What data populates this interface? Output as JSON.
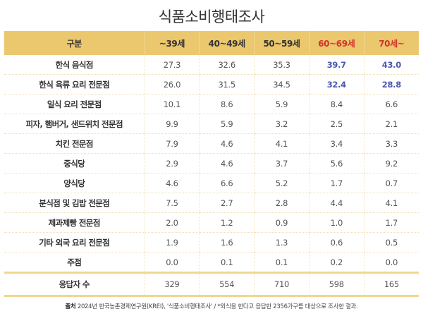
{
  "title": "식품소비행태조사",
  "table": {
    "headers": [
      "구분",
      "~39세",
      "40~49세",
      "50~59세",
      "60~69세",
      "70세~"
    ],
    "highlight_header_color": "#d1342b",
    "highlight_value_color": "#4b57b0",
    "header_bg": "#ebc76e",
    "rows": [
      {
        "label": "한식 음식점",
        "values": [
          "27.3",
          "32.6",
          "35.3",
          "39.7",
          "43.0"
        ]
      },
      {
        "label": "한식 육류 요리 전문점",
        "values": [
          "26.0",
          "31.5",
          "34.5",
          "32.4",
          "28.8"
        ]
      },
      {
        "label": "일식 요리 전문점",
        "values": [
          "10.1",
          "8.6",
          "5.9",
          "8.4",
          "6.6"
        ]
      },
      {
        "label": "피자, 햄버거, 샌드위치 전문점",
        "values": [
          "9.9",
          "5.9",
          "3.2",
          "2.5",
          "2.1"
        ]
      },
      {
        "label": "치킨 전문점",
        "values": [
          "7.9",
          "4.6",
          "4.1",
          "3.4",
          "3.3"
        ]
      },
      {
        "label": "중식당",
        "values": [
          "2.9",
          "4.6",
          "3.7",
          "5.6",
          "9.2"
        ]
      },
      {
        "label": "양식당",
        "values": [
          "4.6",
          "6.6",
          "5.2",
          "1.7",
          "0.7"
        ]
      },
      {
        "label": "분식점 및 김밥 전문점",
        "values": [
          "7.5",
          "2.7",
          "2.8",
          "4.4",
          "4.1"
        ]
      },
      {
        "label": "제과제빵 전문점",
        "values": [
          "2.0",
          "1.2",
          "0.9",
          "1.0",
          "1.7"
        ]
      },
      {
        "label": "기타 외국 요리 전문점",
        "values": [
          "1.9",
          "1.6",
          "1.3",
          "0.6",
          "0.5"
        ]
      },
      {
        "label": "주점",
        "values": [
          "0.0",
          "0.1",
          "0.1",
          "0.2",
          "0.0"
        ]
      }
    ],
    "total": {
      "label": "응답자 수",
      "values": [
        "329",
        "554",
        "710",
        "598",
        "165"
      ]
    }
  },
  "footer": {
    "source_label": "출처",
    "source_text": " 2024년 한국농촌경제연구원(KREI), '식품소비행태조사' / *외식을 한다고 응답한 2356가구를 대상으로 조사한 결과."
  }
}
